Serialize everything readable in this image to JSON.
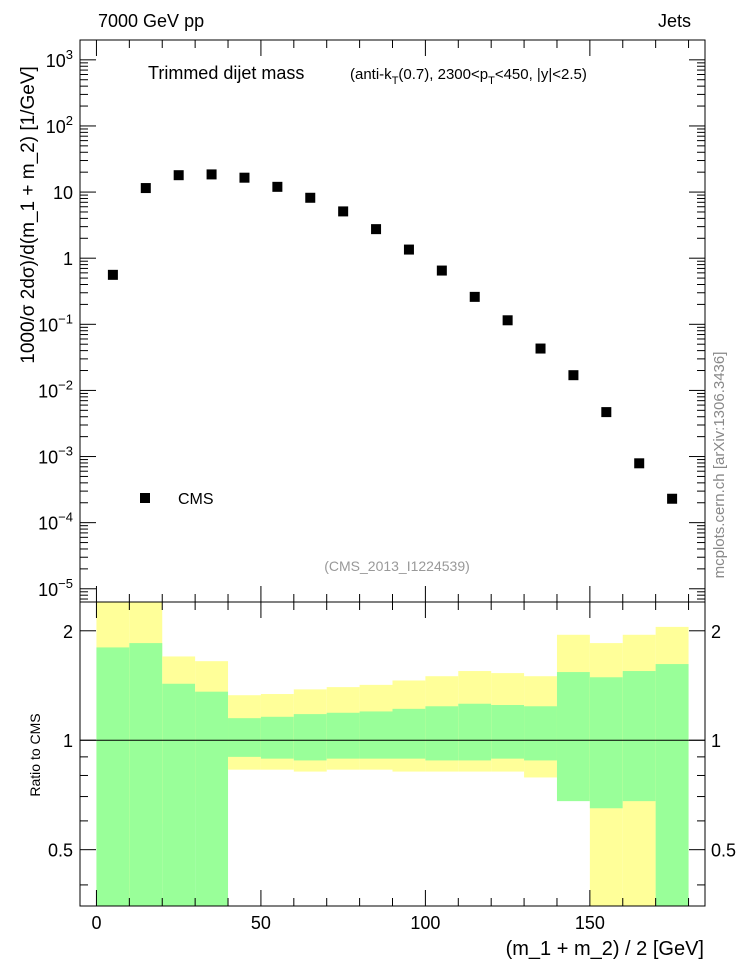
{
  "header": {
    "left": "7000 GeV pp",
    "right": "Jets"
  },
  "plot_title": "Trimmed dijet mass",
  "plot_subtitle": {
    "p1": "(anti-k",
    "s1": "T",
    "p2": "(0.7), 2300<p",
    "s2": "T",
    "p3": "<450, |y|<2.5)"
  },
  "watermark": "(CMS_2013_I1224539)",
  "side_credit": "mcplots.cern.ch [arXiv:1306.3436]",
  "colors": {
    "inner_band": "#99ff99",
    "outer_band": "#ffff99",
    "marker": "#000000"
  },
  "chart_data": [
    {
      "type": "scatter",
      "log_y": true,
      "ylabel": "1000/σ 2dσ)/d(m_1 + m_2) [1/GeV]",
      "xlim": [
        -5,
        185
      ],
      "ylim_exponents": [
        -5.2,
        3.3
      ],
      "y_tick_labels": [
        {
          "mantissa": "10",
          "exp": "3",
          "e": 3
        },
        {
          "mantissa": "10",
          "exp": "2",
          "e": 2
        },
        {
          "mantissa": "10",
          "exp": "",
          "e": 1
        },
        {
          "mantissa": "1",
          "exp": "",
          "e": 0
        },
        {
          "mantissa": "10",
          "exp": "−1",
          "e": -1
        },
        {
          "mantissa": "10",
          "exp": "−2",
          "e": -2
        },
        {
          "mantissa": "10",
          "exp": "−3",
          "e": -3
        },
        {
          "mantissa": "10",
          "exp": "−4",
          "e": -4
        },
        {
          "mantissa": "10",
          "exp": "−5",
          "e": -5
        }
      ],
      "legend": {
        "label": "CMS",
        "position": "bottom-left"
      },
      "series": [
        {
          "name": "CMS",
          "x": [
            5,
            15,
            25,
            35,
            45,
            55,
            65,
            75,
            85,
            95,
            105,
            115,
            125,
            135,
            145,
            155,
            165,
            175
          ],
          "y": [
            0.56,
            11.5,
            18,
            18.5,
            16.5,
            12,
            8.2,
            5.1,
            2.75,
            1.35,
            0.65,
            0.26,
            0.115,
            0.043,
            0.017,
            0.0047,
            0.00079,
            0.00023
          ]
        }
      ]
    },
    {
      "type": "area",
      "ylabel": "Ratio to CMS",
      "log_y": true,
      "ylim": [
        0.35,
        2.4
      ],
      "xlim": [
        -5,
        185
      ],
      "y_tick_labels": [
        "2",
        "1",
        "0.5"
      ],
      "y_ticks": [
        2,
        1,
        0.5
      ],
      "xlabel": "(m_1 + m_2) / 2 [GeV]",
      "x_tick_labels": [
        "0",
        "50",
        "100",
        "150"
      ],
      "x_ticks": [
        0,
        50,
        100,
        150
      ],
      "bins": [
        0,
        10,
        20,
        30,
        40,
        50,
        60,
        70,
        80,
        90,
        100,
        110,
        120,
        130,
        140,
        150,
        160,
        170,
        180
      ],
      "outer_band_low": [
        0.3,
        0.3,
        0.59,
        0.71,
        0.83,
        0.83,
        0.82,
        0.83,
        0.83,
        0.82,
        0.82,
        0.82,
        0.82,
        0.79,
        0.71,
        0.3,
        0.3,
        0.3
      ],
      "outer_band_high": [
        2.5,
        2.5,
        1.7,
        1.65,
        1.33,
        1.34,
        1.38,
        1.4,
        1.42,
        1.46,
        1.5,
        1.55,
        1.53,
        1.5,
        1.95,
        1.85,
        1.95,
        2.05
      ],
      "inner_band_low": [
        0.3,
        0.3,
        0.3,
        0.3,
        0.9,
        0.89,
        0.88,
        0.89,
        0.89,
        0.89,
        0.88,
        0.88,
        0.89,
        0.88,
        0.68,
        0.65,
        0.68,
        0.3
      ],
      "inner_band_high": [
        1.8,
        1.85,
        1.43,
        1.36,
        1.15,
        1.16,
        1.18,
        1.19,
        1.2,
        1.22,
        1.24,
        1.26,
        1.25,
        1.24,
        1.54,
        1.49,
        1.55,
        1.62
      ],
      "reference_line": 1
    }
  ]
}
